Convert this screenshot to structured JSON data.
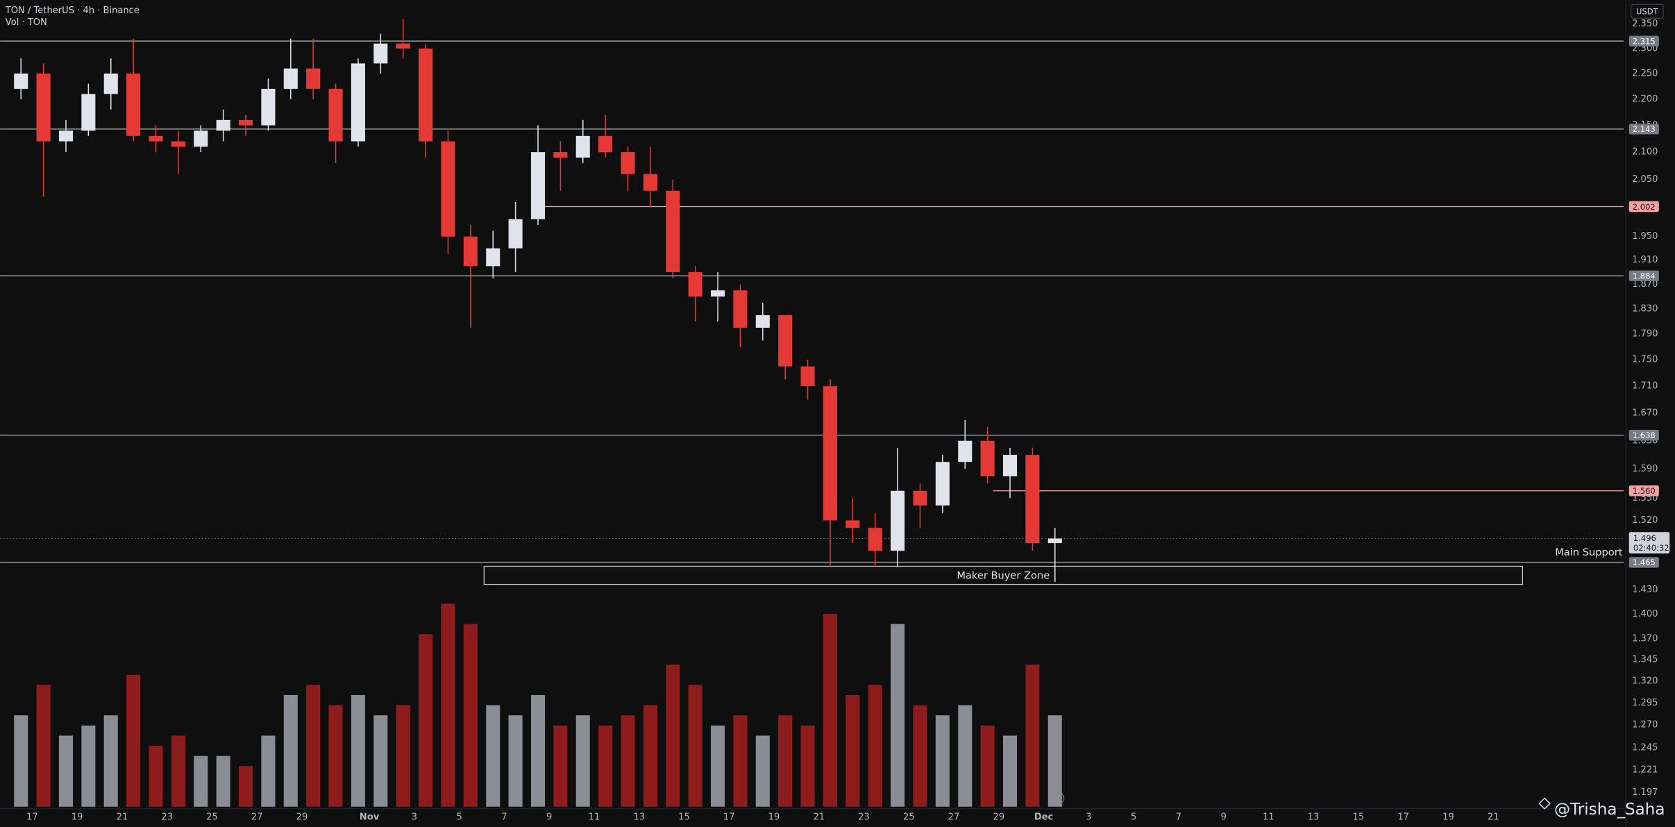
{
  "chart_data": {
    "type": "candlestick",
    "title": "TON / TetherUS · 4h · Binance",
    "subtitle": "Vol · TON",
    "currency": "USDT",
    "log": true,
    "grid": false,
    "up_color": "#e0e3eb",
    "down_color": "#e53935",
    "volume_up_color": "#8a8d96",
    "volume_down_color": "#8e1c1c",
    "xlim": [
      -1.43,
      70.8
    ],
    "ylim": [
      1.18,
      2.4
    ],
    "xticks": [
      {
        "value": 0,
        "label": "17"
      },
      {
        "value": 2,
        "label": "19"
      },
      {
        "value": 4,
        "label": "21"
      },
      {
        "value": 6,
        "label": "23"
      },
      {
        "value": 8,
        "label": "25"
      },
      {
        "value": 10,
        "label": "27"
      },
      {
        "value": 12,
        "label": "29"
      },
      {
        "value": 15,
        "label": "Nov"
      },
      {
        "value": 17,
        "label": "3"
      },
      {
        "value": 19,
        "label": "5"
      },
      {
        "value": 21,
        "label": "7"
      },
      {
        "value": 23,
        "label": "9"
      },
      {
        "value": 25,
        "label": "11"
      },
      {
        "value": 27,
        "label": "13"
      },
      {
        "value": 29,
        "label": "15"
      },
      {
        "value": 31,
        "label": "17"
      },
      {
        "value": 33,
        "label": "19"
      },
      {
        "value": 35,
        "label": "21"
      },
      {
        "value": 37,
        "label": "23"
      },
      {
        "value": 39,
        "label": "25"
      },
      {
        "value": 41,
        "label": "27"
      },
      {
        "value": 43,
        "label": "29"
      },
      {
        "value": 45,
        "label": "Dec"
      },
      {
        "value": 47,
        "label": "3"
      },
      {
        "value": 49,
        "label": "5"
      },
      {
        "value": 51,
        "label": "7"
      },
      {
        "value": 53,
        "label": "9"
      },
      {
        "value": 55,
        "label": "11"
      },
      {
        "value": 57,
        "label": "13"
      },
      {
        "value": 59,
        "label": "15"
      },
      {
        "value": 61,
        "label": "17"
      },
      {
        "value": 63,
        "label": "19"
      },
      {
        "value": 65,
        "label": "21"
      }
    ],
    "yticks": [
      {
        "value": 2.35,
        "label": "2.350"
      },
      {
        "value": 2.3,
        "label": "2.300"
      },
      {
        "value": 2.25,
        "label": "2.250"
      },
      {
        "value": 2.2,
        "label": "2.200"
      },
      {
        "value": 2.15,
        "label": "2.150"
      },
      {
        "value": 2.1,
        "label": "2.100"
      },
      {
        "value": 2.05,
        "label": "2.050"
      },
      {
        "value": 1.95,
        "label": "1.950"
      },
      {
        "value": 1.91,
        "label": "1.910"
      },
      {
        "value": 1.87,
        "label": "1.870"
      },
      {
        "value": 1.83,
        "label": "1.830"
      },
      {
        "value": 1.79,
        "label": "1.790"
      },
      {
        "value": 1.75,
        "label": "1.750"
      },
      {
        "value": 1.71,
        "label": "1.710"
      },
      {
        "value": 1.67,
        "label": "1.670"
      },
      {
        "value": 1.63,
        "label": "1.630"
      },
      {
        "value": 1.59,
        "label": "1.590"
      },
      {
        "value": 1.55,
        "label": "1.550"
      },
      {
        "value": 1.52,
        "label": "1.520"
      },
      {
        "value": 1.43,
        "label": "1.430"
      },
      {
        "value": 1.4,
        "label": "1.400"
      },
      {
        "value": 1.37,
        "label": "1.370"
      },
      1.345,
      {
        "value": 1.32,
        "label": "1.320"
      },
      1.295,
      {
        "value": 1.27,
        "label": "1.270"
      },
      1.245,
      1.221,
      1.197
    ],
    "x": [
      -0.5,
      0.5,
      1.5,
      2.5,
      3.5,
      4.5,
      5.5,
      6.5,
      7.5,
      8.5,
      9.5,
      10.5,
      11.5,
      12.5,
      13.5,
      14.5,
      15.5,
      16.5,
      17.5,
      18.5,
      19.5,
      20.5,
      21.5,
      22.5,
      23.5,
      24.5,
      25.5,
      26.5,
      27.5,
      28.5,
      29.5,
      30.5,
      31.5,
      32.5,
      33.5,
      34.5,
      35.5,
      36.5,
      37.5,
      38.5,
      39.5,
      40.5,
      41.5,
      42.5,
      43.5,
      44.5,
      45.5
    ],
    "open": [
      2.22,
      2.25,
      2.12,
      2.14,
      2.21,
      2.25,
      2.13,
      2.12,
      2.11,
      2.14,
      2.16,
      2.15,
      2.22,
      2.26,
      2.22,
      2.12,
      2.27,
      2.31,
      2.3,
      2.12,
      1.95,
      1.9,
      1.93,
      1.98,
      2.1,
      2.09,
      2.13,
      2.1,
      2.06,
      2.03,
      1.89,
      1.85,
      1.86,
      1.8,
      1.82,
      1.74,
      1.71,
      1.52,
      1.51,
      1.48,
      1.56,
      1.54,
      1.6,
      1.63,
      1.58,
      1.61,
      1.49
    ],
    "high": [
      2.28,
      2.27,
      2.16,
      2.23,
      2.28,
      2.32,
      2.15,
      2.14,
      2.15,
      2.18,
      2.17,
      2.24,
      2.32,
      2.32,
      2.23,
      2.28,
      2.33,
      2.36,
      2.31,
      2.14,
      1.97,
      1.96,
      2.01,
      2.15,
      2.12,
      2.16,
      2.17,
      2.11,
      2.11,
      2.05,
      1.9,
      1.89,
      1.87,
      1.84,
      1.82,
      1.75,
      1.72,
      1.55,
      1.53,
      1.62,
      1.57,
      1.61,
      1.66,
      1.65,
      1.62,
      1.62,
      1.51
    ],
    "low": [
      2.2,
      2.02,
      2.1,
      2.13,
      2.18,
      2.12,
      2.1,
      2.06,
      2.1,
      2.12,
      2.13,
      2.14,
      2.2,
      2.2,
      2.08,
      2.11,
      2.25,
      2.28,
      2.09,
      1.92,
      1.8,
      1.88,
      1.89,
      1.97,
      2.03,
      2.08,
      2.09,
      2.03,
      2.0,
      1.88,
      1.81,
      1.81,
      1.77,
      1.78,
      1.72,
      1.69,
      1.46,
      1.49,
      1.46,
      1.46,
      1.51,
      1.53,
      1.59,
      1.57,
      1.55,
      1.48,
      1.44
    ],
    "close": [
      2.25,
      2.12,
      2.14,
      2.21,
      2.25,
      2.13,
      2.12,
      2.11,
      2.14,
      2.16,
      2.15,
      2.22,
      2.26,
      2.22,
      2.12,
      2.27,
      2.31,
      2.3,
      2.12,
      1.95,
      1.9,
      1.93,
      1.98,
      2.1,
      2.09,
      2.13,
      2.1,
      2.06,
      2.03,
      1.89,
      1.85,
      1.86,
      1.8,
      1.82,
      1.74,
      1.71,
      1.52,
      1.51,
      1.48,
      1.56,
      1.54,
      1.6,
      1.63,
      1.58,
      1.61,
      1.49,
      1.496
    ],
    "volume": [
      45,
      60,
      35,
      40,
      45,
      65,
      30,
      35,
      25,
      25,
      20,
      35,
      55,
      60,
      50,
      55,
      45,
      50,
      85,
      100,
      90,
      50,
      45,
      55,
      40,
      45,
      40,
      45,
      50,
      70,
      60,
      40,
      45,
      35,
      45,
      40,
      95,
      55,
      60,
      90,
      50,
      45,
      50,
      40,
      35,
      70,
      45
    ],
    "levels": [
      {
        "value": 2.315,
        "color": "#b2b5be",
        "from": -1.43
      },
      {
        "value": 2.143,
        "color": "#b2b5be",
        "from": -1.43
      },
      {
        "value": 2.002,
        "color": "#f7a1a1",
        "from": 22.5
      },
      {
        "value": 1.884,
        "color": "#b2b5be",
        "from": -1.43
      },
      {
        "value": 1.638,
        "color": "#b2b5be",
        "from": -1.43
      },
      {
        "value": 1.56,
        "label": "1.560",
        "color": "#f7a1a1",
        "from": 42.75
      },
      {
        "value": 1.465,
        "color": "#b2b5be",
        "from": -1.43,
        "note": "Main Support"
      }
    ],
    "last_price": {
      "value": 1.496,
      "countdown": "02:40:32"
    },
    "zone": {
      "label": "Maker Buyer Zone",
      "from": 20.1,
      "to": 66.3,
      "top": 1.46,
      "bottom": 1.437
    },
    "watermark": "@Trisha_Saha"
  }
}
